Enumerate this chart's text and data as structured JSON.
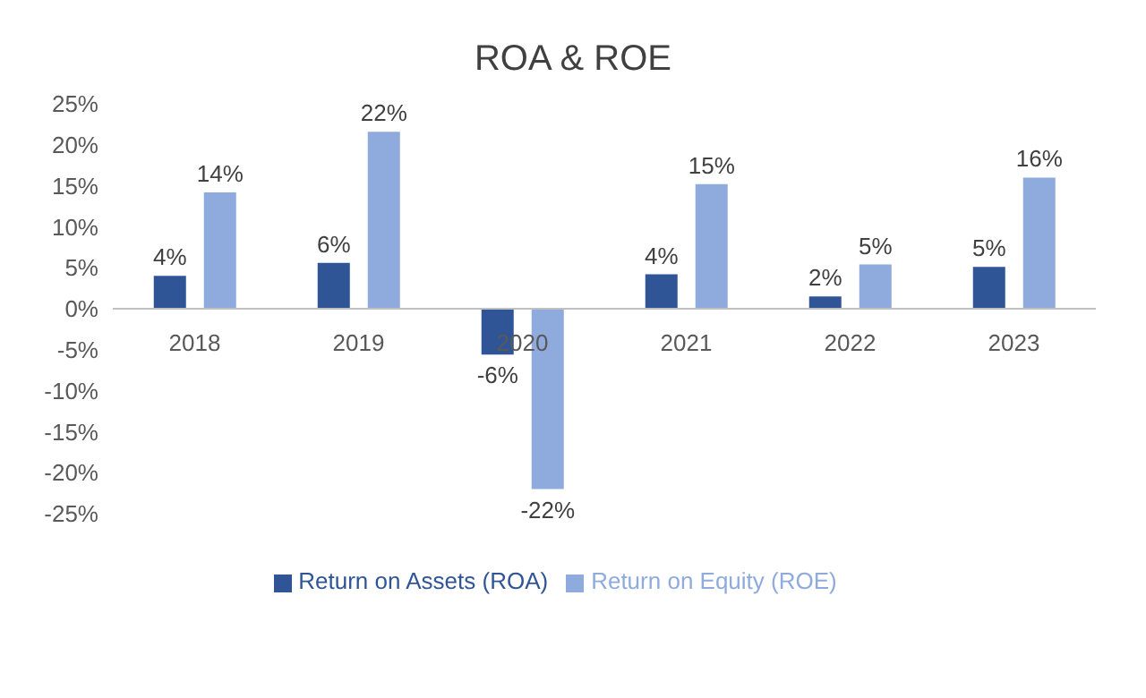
{
  "chart_data": {
    "type": "bar",
    "title": "ROA & ROE",
    "categories": [
      "2018",
      "2019",
      "2020",
      "2021",
      "2022",
      "2023"
    ],
    "series": [
      {
        "name": "Return on Assets (ROA)",
        "color": "#2f5597",
        "values": [
          4,
          5.6,
          -5.6,
          4.2,
          1.5,
          5.1
        ],
        "value_labels": [
          "4%",
          "6%",
          "-6%",
          "4%",
          "2%",
          "5%"
        ]
      },
      {
        "name": "Return on Equity (ROE)",
        "color": "#8faadc",
        "values": [
          14.2,
          21.6,
          -22,
          15.2,
          5.4,
          16
        ],
        "value_labels": [
          "14%",
          "22%",
          "-22%",
          "15%",
          "5%",
          "16%"
        ]
      }
    ],
    "ylim": [
      -25,
      25
    ],
    "yticks": [
      {
        "value": -25,
        "label": "-25%"
      },
      {
        "value": -20,
        "label": "-20%"
      },
      {
        "value": -15,
        "label": "-15%"
      },
      {
        "value": -10,
        "label": "-10%"
      },
      {
        "value": -5,
        "label": "-5%"
      },
      {
        "value": 0,
        "label": "0%"
      },
      {
        "value": 5,
        "label": "5%"
      },
      {
        "value": 10,
        "label": "10%"
      },
      {
        "value": 15,
        "label": "15%"
      },
      {
        "value": 20,
        "label": "20%"
      },
      {
        "value": 25,
        "label": "25%"
      }
    ],
    "grid": false,
    "legend": "bottom"
  }
}
